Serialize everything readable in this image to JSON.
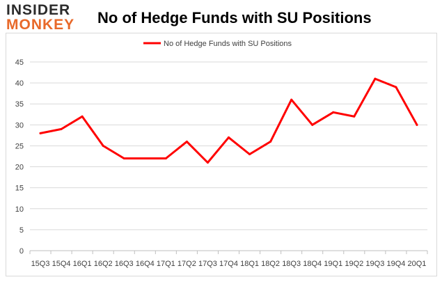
{
  "logo": {
    "line1": "INSIDER",
    "line2": "MONKEY"
  },
  "colors": {
    "series": "#ff0000",
    "grid": "#d9d9d9",
    "axis": "#bfbfbf",
    "logo_dark": "#2b2b2b",
    "logo_accent": "#e8692a"
  },
  "chart_data": {
    "type": "line",
    "title": "No of Hedge Funds with SU Positions",
    "xlabel": "",
    "ylabel": "",
    "ylim": [
      0,
      45
    ],
    "yticks": [
      0,
      5,
      10,
      15,
      20,
      25,
      30,
      35,
      40,
      45
    ],
    "grid": "horizontal",
    "legend_position": "top",
    "categories": [
      "15Q3",
      "15Q4",
      "16Q1",
      "16Q2",
      "16Q3",
      "16Q4",
      "17Q1",
      "17Q2",
      "17Q3",
      "17Q4",
      "18Q1",
      "18Q2",
      "18Q3",
      "18Q4",
      "19Q1",
      "19Q2",
      "19Q3",
      "19Q4",
      "20Q1"
    ],
    "series": [
      {
        "name": "No of Hedge Funds with SU Positions",
        "color": "#ff0000",
        "values": [
          28,
          29,
          32,
          25,
          22,
          22,
          22,
          26,
          21,
          27,
          23,
          26,
          36,
          30,
          33,
          32,
          41,
          39,
          30
        ]
      }
    ]
  }
}
